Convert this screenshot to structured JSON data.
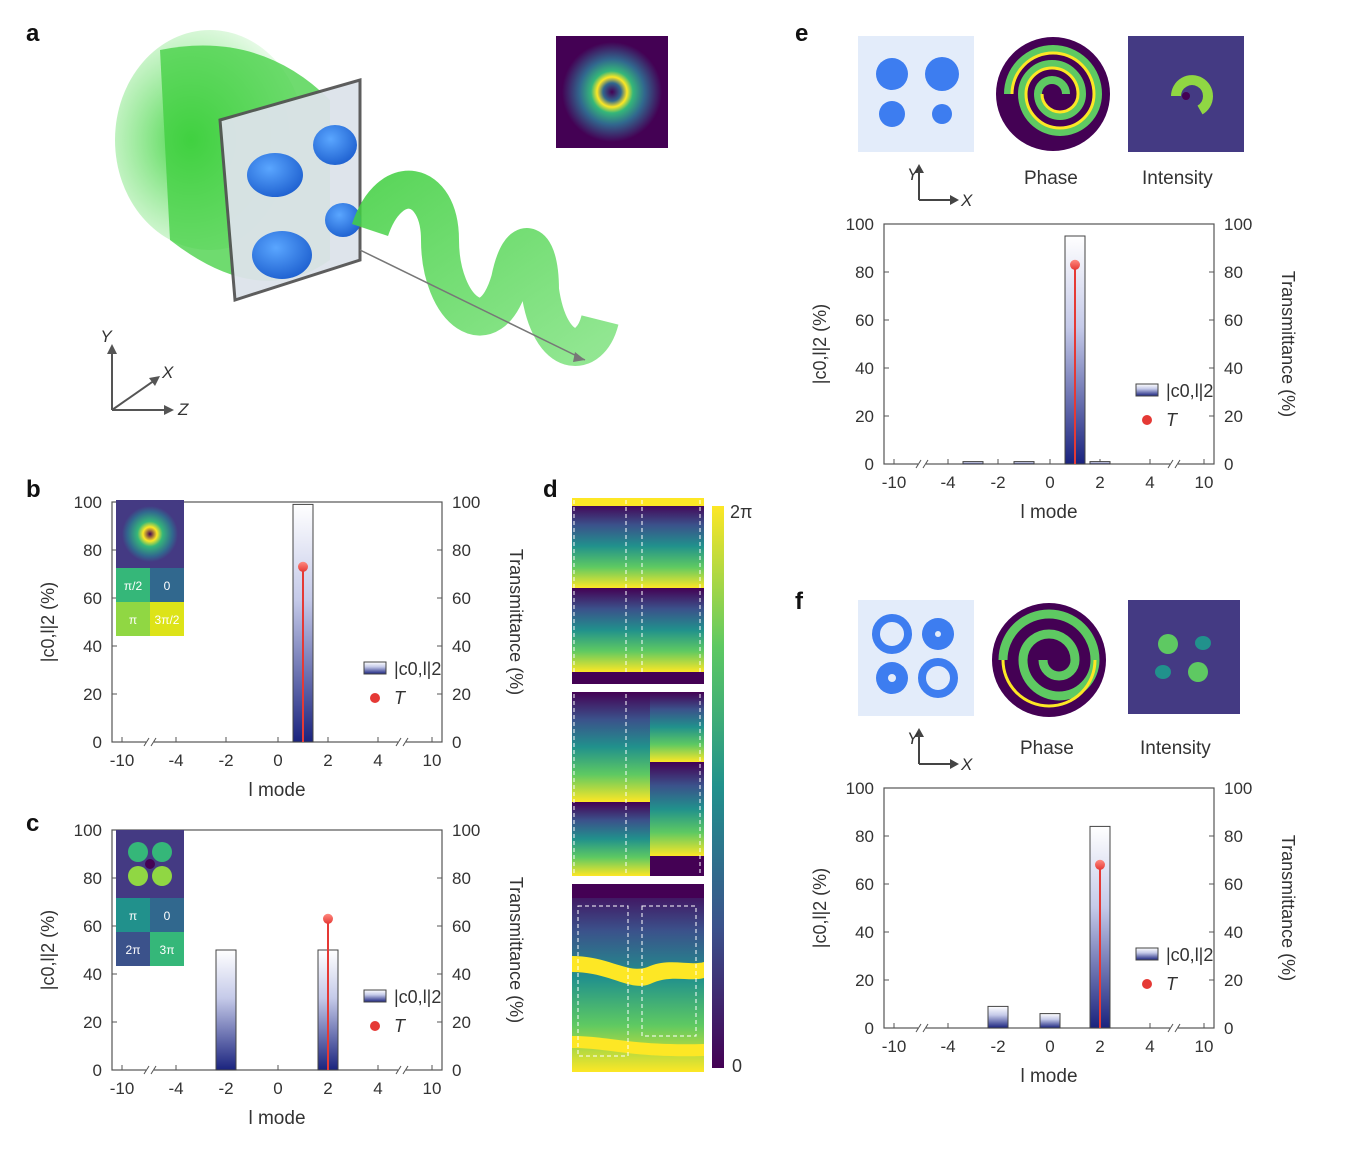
{
  "panels": {
    "a": "a",
    "b": "b",
    "c": "c",
    "d": "d",
    "e": "e",
    "f": "f"
  },
  "axes_labels": {
    "x": "X",
    "y": "Y",
    "z": "Z"
  },
  "phase_label": "Phase",
  "intensity_label": "Intensity",
  "panel_b_cells": [
    "π/2",
    "0",
    "π",
    "3π/2"
  ],
  "panel_c_cells": [
    "π",
    "0",
    "2π",
    "3π"
  ],
  "colorbar": {
    "max": "2π",
    "min": "0"
  },
  "colors": {
    "viridis_dark": "#440154",
    "viridis_mid": "#21918c",
    "viridis_bright": "#fde725",
    "bar_bottom": "#1a237e",
    "transmittance": "#e53935",
    "metasurface_blue": "#2f7de1",
    "beam_green": "#4cd44c"
  },
  "chart_data": [
    {
      "panel": "b",
      "type": "bar",
      "x_ticks": [
        "-10",
        "-4",
        "-2",
        "0",
        "2",
        "4",
        "10"
      ],
      "xlabel": "l mode",
      "ylabel": "|c0,l|2 (%)",
      "y2label": "Transmittance (%)",
      "y_ticks": [
        "0",
        "20",
        "40",
        "60",
        "80",
        "100"
      ],
      "ylim": [
        0,
        100
      ],
      "legend": [
        "|c0,l|2",
        "T"
      ],
      "legend_position": "bottom-right",
      "bars": [
        {
          "l": 1,
          "value": 99
        }
      ],
      "transmittance": [
        {
          "l": 1,
          "value": 73
        }
      ]
    },
    {
      "panel": "c",
      "type": "bar",
      "x_ticks": [
        "-10",
        "-4",
        "-2",
        "0",
        "2",
        "4",
        "10"
      ],
      "xlabel": "l mode",
      "ylabel": "|c0,l|2 (%)",
      "y2label": "Transmittance (%)",
      "y_ticks": [
        "0",
        "20",
        "40",
        "60",
        "80",
        "100"
      ],
      "ylim": [
        0,
        100
      ],
      "legend": [
        "|c0,l|2",
        "T"
      ],
      "legend_position": "bottom-right",
      "bars": [
        {
          "l": -2,
          "value": 50
        },
        {
          "l": 2,
          "value": 50
        }
      ],
      "transmittance": [
        {
          "l": 2,
          "value": 63
        }
      ]
    },
    {
      "panel": "e",
      "type": "bar",
      "x_ticks": [
        "-10",
        "-4",
        "-2",
        "0",
        "2",
        "4",
        "10"
      ],
      "xlabel": "l mode",
      "ylabel": "|c0,l|2 (%)",
      "y2label": "Transmittance (%)",
      "y_ticks": [
        "0",
        "20",
        "40",
        "60",
        "80",
        "100"
      ],
      "ylim": [
        0,
        100
      ],
      "legend": [
        "|c0,l|2",
        "T"
      ],
      "legend_position": "bottom-right",
      "bars": [
        {
          "l": -3,
          "value": 1
        },
        {
          "l": -1,
          "value": 1
        },
        {
          "l": 1,
          "value": 95
        },
        {
          "l": 2,
          "value": 1
        }
      ],
      "transmittance": [
        {
          "l": 1,
          "value": 83
        }
      ]
    },
    {
      "panel": "f",
      "type": "bar",
      "x_ticks": [
        "-10",
        "-4",
        "-2",
        "0",
        "2",
        "4",
        "10"
      ],
      "xlabel": "l mode",
      "ylabel": "|c0,l|2 (%)",
      "y2label": "Transmittance (%)",
      "y_ticks": [
        "0",
        "20",
        "40",
        "60",
        "80",
        "100"
      ],
      "ylim": [
        0,
        100
      ],
      "legend": [
        "|c0,l|2",
        "T"
      ],
      "legend_position": "bottom-right",
      "bars": [
        {
          "l": -2,
          "value": 9
        },
        {
          "l": 0,
          "value": 6
        },
        {
          "l": 2,
          "value": 84
        }
      ],
      "transmittance": [
        {
          "l": 2,
          "value": 68
        }
      ]
    }
  ]
}
